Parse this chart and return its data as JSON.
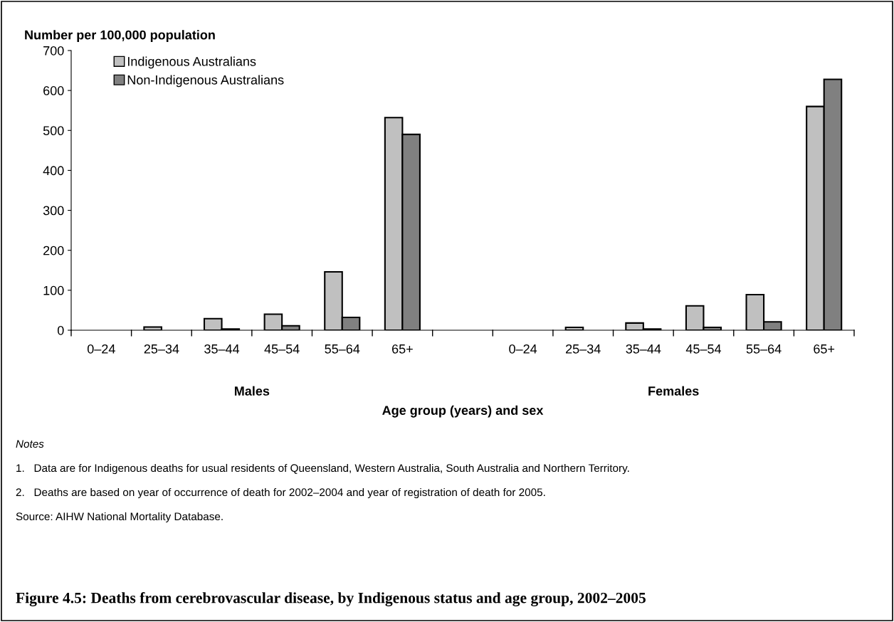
{
  "chart_data": {
    "type": "bar",
    "title": "Figure 4.5: Deaths from cerebrovascular disease, by Indigenous status and age group, 2002–2005",
    "ylabel": "Number per 100,000 population",
    "xlabel": "Age group (years) and sex",
    "categories": [
      "0–24",
      "25–34",
      "35–44",
      "45–54",
      "55–64",
      "65+",
      null,
      "0–24",
      "25–34",
      "35–44",
      "45–54",
      "55–64",
      "65+"
    ],
    "series": [
      {
        "name": "Indigenous Australians",
        "color": "#c0c0c0",
        "values": [
          null,
          8,
          29,
          40,
          146,
          532,
          null,
          null,
          7,
          18,
          61,
          89,
          560
        ]
      },
      {
        "name": "Non-Indigenous Australians",
        "color": "#808080",
        "values": [
          null,
          null,
          3,
          11,
          32,
          490,
          null,
          null,
          null,
          3,
          7,
          21,
          628
        ]
      }
    ],
    "ylim": [
      0,
      700
    ],
    "yticks": [
      0,
      100,
      200,
      300,
      400,
      500,
      600,
      700
    ],
    "grid": false,
    "legend": "top left",
    "annotations": [
      "Males",
      "Females",
      "Notes",
      "1.   Data are for Indigenous deaths for usual residents of Queensland, Western Australia, South Australia and Northern Territory.",
      "2.   Deaths are based on year of occurrence of death for 2002–2004 and year of registration of death for 2005.",
      "Source: AIHW National Mortality Database."
    ]
  }
}
